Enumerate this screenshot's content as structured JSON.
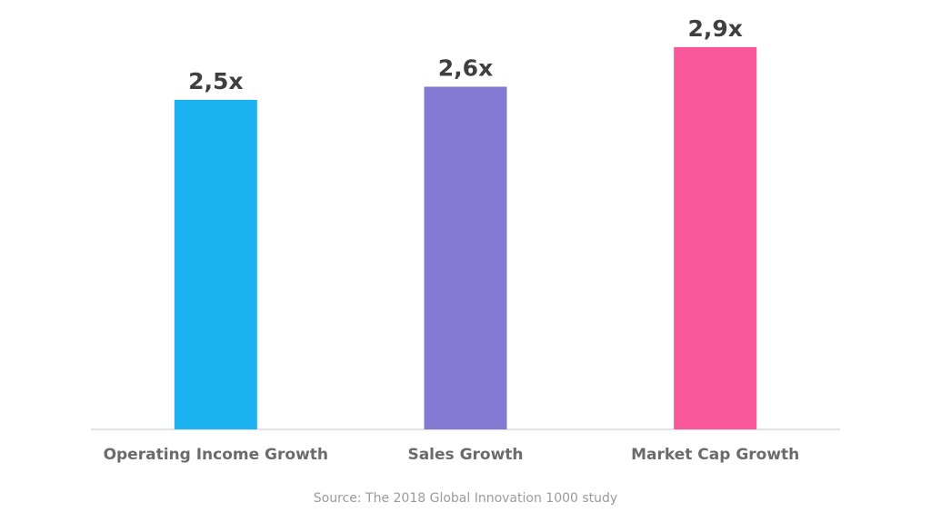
{
  "chart_data": {
    "type": "bar",
    "categories": [
      "Operating Income Growth",
      "Sales Growth",
      "Market Cap Growth"
    ],
    "values": [
      2.5,
      2.6,
      2.9
    ],
    "value_labels": [
      "2,5x",
      "2,6x",
      "2,9x"
    ],
    "colors": [
      "#1bb3f1",
      "#857ad3",
      "#f8579a"
    ],
    "title": "",
    "xlabel": "",
    "ylabel": "",
    "ylim": [
      0,
      3.2
    ],
    "grid": false,
    "legend": "none"
  },
  "source": "Source: The 2018 Global Innovation 1000 study"
}
